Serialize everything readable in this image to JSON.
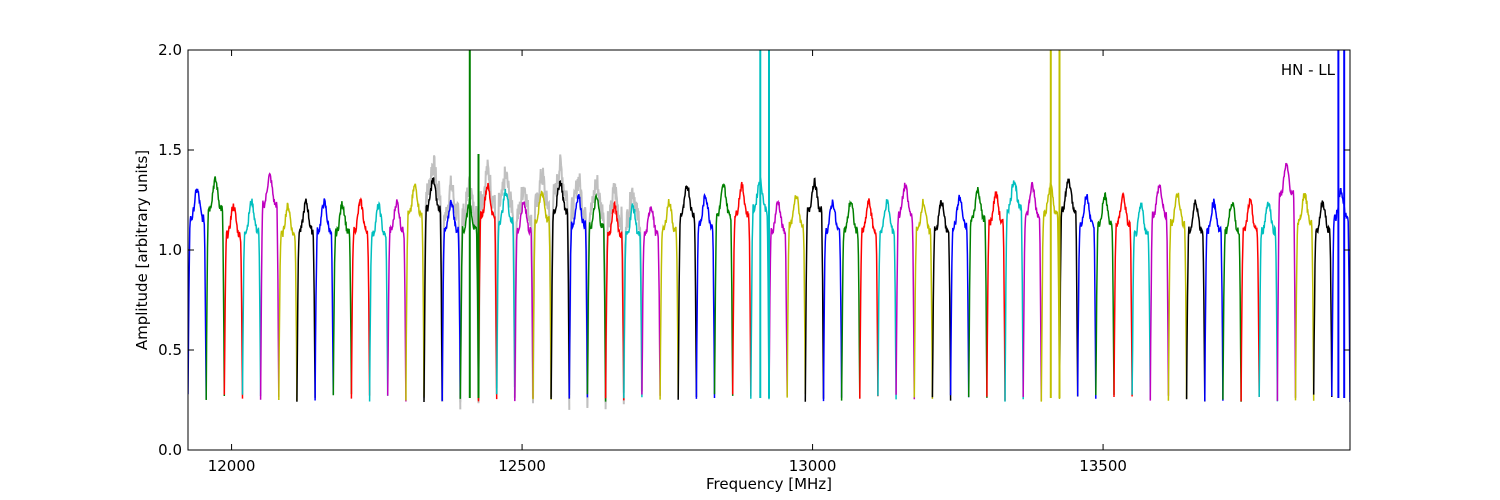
{
  "chart_data": {
    "type": "line",
    "title": "",
    "annotation": "HN - LL",
    "xlabel": "Frequency [MHz]",
    "ylabel": "Amplitude [arbitrary units]",
    "xlim": [
      11925,
      13925
    ],
    "ylim": [
      0.0,
      2.0
    ],
    "xticks": [
      12000,
      12500,
      13000,
      13500
    ],
    "yticks": [
      0.0,
      0.5,
      1.0,
      1.5,
      2.0
    ],
    "xtick_labels": [
      "12000",
      "12500",
      "13000",
      "13500"
    ],
    "ytick_labels": [
      "0.0",
      "0.5",
      "1.0",
      "1.5",
      "2.0"
    ],
    "grid": false,
    "legend": "none",
    "color_cycle": [
      "#0000ff",
      "#008000",
      "#ff0000",
      "#00bfbf",
      "#bf00bf",
      "#bfbf00",
      "#000000"
    ],
    "background_series_color": "#c0c0c0",
    "channel_width_mhz": 31.25,
    "channel_start_mhz": 11925,
    "channel_count": 64,
    "channel_peak_levels": [
      1.28,
      1.33,
      1.2,
      1.22,
      1.35,
      1.2,
      1.22,
      1.22,
      1.21,
      1.22,
      1.2,
      1.22,
      1.3,
      1.33,
      1.22,
      1.22,
      1.3,
      1.27,
      1.22,
      1.27,
      1.32,
      1.25,
      1.24,
      1.2,
      1.2,
      1.2,
      1.22,
      1.3,
      1.25,
      1.3,
      1.3,
      1.33,
      1.22,
      1.25,
      1.32,
      1.22,
      1.22,
      1.22,
      1.22,
      1.3,
      1.22,
      1.22,
      1.24,
      1.28,
      1.26,
      1.33,
      1.3,
      1.3,
      1.33,
      1.25,
      1.25,
      1.25,
      1.2,
      1.3,
      1.26,
      1.22,
      1.22,
      1.22,
      1.22,
      1.22,
      1.4,
      1.26,
      1.22,
      1.28
    ],
    "channel_min_level": 0.26,
    "spikes": [
      {
        "x": 12410,
        "color": "#008000",
        "top": 2.0
      },
      {
        "x": 12425,
        "color": "#008000",
        "top": 1.48
      },
      {
        "x": 12910,
        "color": "#00bfbf",
        "top": 2.0
      },
      {
        "x": 12925,
        "color": "#00bfbf",
        "top": 2.0
      },
      {
        "x": 13410,
        "color": "#bfbf00",
        "top": 2.0
      },
      {
        "x": 13425,
        "color": "#bfbf00",
        "top": 2.0
      },
      {
        "x": 13905,
        "color": "#0000ff",
        "top": 2.0
      },
      {
        "x": 13915,
        "color": "#0000ff",
        "top": 2.0
      }
    ],
    "background_series_range": [
      12360,
      12690
    ]
  }
}
